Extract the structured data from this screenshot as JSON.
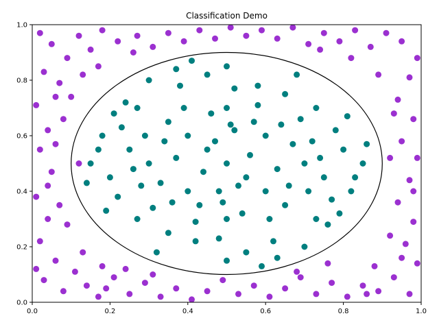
{
  "chart_data": {
    "type": "scatter",
    "title": "Classification Demo",
    "xlabel": "",
    "ylabel": "",
    "xlim": [
      0.0,
      1.0
    ],
    "ylim": [
      0.0,
      1.0
    ],
    "x_ticks": [
      "0.0",
      "0.2",
      "0.4",
      "0.6",
      "0.8",
      "1.0"
    ],
    "y_ticks": [
      "0.0",
      "0.2",
      "0.4",
      "0.6",
      "0.8",
      "1.0"
    ],
    "grid": false,
    "legend": false,
    "boundary": {
      "shape": "circle",
      "center": [
        0.5,
        0.5
      ],
      "radius": 0.4,
      "color": "#000000"
    },
    "series": [
      {
        "color": "#9b30d0",
        "points": [
          [
            0.02,
            0.97
          ],
          [
            0.05,
            0.93
          ],
          [
            0.09,
            0.88
          ],
          [
            0.12,
            0.96
          ],
          [
            0.15,
            0.91
          ],
          [
            0.18,
            0.98
          ],
          [
            0.22,
            0.94
          ],
          [
            0.03,
            0.83
          ],
          [
            0.07,
            0.79
          ],
          [
            0.01,
            0.71
          ],
          [
            0.04,
            0.62
          ],
          [
            0.08,
            0.66
          ],
          [
            0.02,
            0.55
          ],
          [
            0.05,
            0.47
          ],
          [
            0.01,
            0.38
          ],
          [
            0.04,
            0.3
          ],
          [
            0.07,
            0.35
          ],
          [
            0.02,
            0.22
          ],
          [
            0.06,
            0.15
          ],
          [
            0.03,
            0.08
          ],
          [
            0.08,
            0.04
          ],
          [
            0.11,
            0.11
          ],
          [
            0.14,
            0.06
          ],
          [
            0.17,
            0.02
          ],
          [
            0.21,
            0.09
          ],
          [
            0.25,
            0.03
          ],
          [
            0.29,
            0.07
          ],
          [
            0.33,
            0.02
          ],
          [
            0.37,
            0.05
          ],
          [
            0.41,
            0.01
          ],
          [
            0.45,
            0.04
          ],
          [
            0.49,
            0.08
          ],
          [
            0.53,
            0.03
          ],
          [
            0.57,
            0.06
          ],
          [
            0.61,
            0.02
          ],
          [
            0.65,
            0.05
          ],
          [
            0.69,
            0.09
          ],
          [
            0.73,
            0.03
          ],
          [
            0.77,
            0.07
          ],
          [
            0.81,
            0.02
          ],
          [
            0.85,
            0.06
          ],
          [
            0.89,
            0.04
          ],
          [
            0.93,
            0.09
          ],
          [
            0.97,
            0.03
          ],
          [
            0.99,
            0.14
          ],
          [
            0.96,
            0.21
          ],
          [
            0.98,
            0.29
          ],
          [
            0.94,
            0.36
          ],
          [
            0.97,
            0.44
          ],
          [
            0.99,
            0.52
          ],
          [
            0.95,
            0.58
          ],
          [
            0.98,
            0.66
          ],
          [
            0.94,
            0.73
          ],
          [
            0.97,
            0.81
          ],
          [
            0.99,
            0.88
          ],
          [
            0.95,
            0.94
          ],
          [
            0.91,
            0.97
          ],
          [
            0.87,
            0.92
          ],
          [
            0.83,
            0.98
          ],
          [
            0.79,
            0.94
          ],
          [
            0.75,
            0.97
          ],
          [
            0.71,
            0.93
          ],
          [
            0.67,
            0.99
          ],
          [
            0.63,
            0.95
          ],
          [
            0.59,
            0.98
          ],
          [
            0.55,
            0.96
          ],
          [
            0.51,
            0.99
          ],
          [
            0.47,
            0.95
          ],
          [
            0.43,
            0.98
          ],
          [
            0.39,
            0.94
          ],
          [
            0.35,
            0.97
          ],
          [
            0.31,
            0.92
          ],
          [
            0.27,
            0.96
          ],
          [
            0.13,
            0.82
          ],
          [
            0.1,
            0.74
          ],
          [
            0.06,
            0.57
          ],
          [
            0.09,
            0.28
          ],
          [
            0.13,
            0.18
          ],
          [
            0.18,
            0.13
          ],
          [
            0.24,
            0.12
          ],
          [
            0.88,
            0.13
          ],
          [
            0.92,
            0.24
          ],
          [
            0.93,
            0.68
          ],
          [
            0.89,
            0.82
          ],
          [
            0.82,
            0.88
          ],
          [
            0.74,
            0.91
          ],
          [
            0.26,
            0.9
          ],
          [
            0.17,
            0.85
          ],
          [
            0.04,
            0.42
          ],
          [
            0.01,
            0.12
          ],
          [
            0.95,
            0.16
          ],
          [
            0.86,
            0.03
          ],
          [
            0.19,
            0.05
          ],
          [
            0.31,
            0.1
          ],
          [
            0.68,
            0.11
          ],
          [
            0.76,
            0.14
          ],
          [
            0.92,
            0.52
          ],
          [
            0.12,
            0.5
          ],
          [
            0.06,
            0.74
          ],
          [
            0.98,
            0.4
          ]
        ]
      },
      {
        "color": "#007f7f",
        "points": [
          [
            0.5,
            0.5
          ],
          [
            0.45,
            0.55
          ],
          [
            0.55,
            0.45
          ],
          [
            0.4,
            0.4
          ],
          [
            0.6,
            0.6
          ],
          [
            0.35,
            0.65
          ],
          [
            0.65,
            0.35
          ],
          [
            0.3,
            0.5
          ],
          [
            0.7,
            0.5
          ],
          [
            0.5,
            0.3
          ],
          [
            0.5,
            0.7
          ],
          [
            0.25,
            0.55
          ],
          [
            0.75,
            0.45
          ],
          [
            0.42,
            0.22
          ],
          [
            0.58,
            0.78
          ],
          [
            0.2,
            0.45
          ],
          [
            0.8,
            0.55
          ],
          [
            0.38,
            0.78
          ],
          [
            0.62,
            0.22
          ],
          [
            0.27,
            0.3
          ],
          [
            0.73,
            0.7
          ],
          [
            0.27,
            0.7
          ],
          [
            0.73,
            0.3
          ],
          [
            0.45,
            0.82
          ],
          [
            0.55,
            0.18
          ],
          [
            0.18,
            0.6
          ],
          [
            0.82,
            0.4
          ],
          [
            0.33,
            0.43
          ],
          [
            0.67,
            0.57
          ],
          [
            0.48,
            0.4
          ],
          [
            0.52,
            0.62
          ],
          [
            0.4,
            0.6
          ],
          [
            0.6,
            0.4
          ],
          [
            0.22,
            0.38
          ],
          [
            0.78,
            0.62
          ],
          [
            0.35,
            0.25
          ],
          [
            0.65,
            0.75
          ],
          [
            0.15,
            0.5
          ],
          [
            0.85,
            0.5
          ],
          [
            0.5,
            0.85
          ],
          [
            0.5,
            0.15
          ],
          [
            0.3,
            0.8
          ],
          [
            0.7,
            0.2
          ],
          [
            0.32,
            0.18
          ],
          [
            0.68,
            0.82
          ],
          [
            0.24,
            0.72
          ],
          [
            0.76,
            0.28
          ],
          [
            0.43,
            0.35
          ],
          [
            0.57,
            0.65
          ],
          [
            0.37,
            0.52
          ],
          [
            0.63,
            0.48
          ],
          [
            0.28,
            0.42
          ],
          [
            0.72,
            0.58
          ],
          [
            0.46,
            0.68
          ],
          [
            0.54,
            0.32
          ],
          [
            0.19,
            0.33
          ],
          [
            0.81,
            0.67
          ],
          [
            0.41,
            0.87
          ],
          [
            0.59,
            0.13
          ],
          [
            0.14,
            0.43
          ],
          [
            0.86,
            0.57
          ],
          [
            0.36,
            0.36
          ],
          [
            0.64,
            0.64
          ],
          [
            0.44,
            0.47
          ],
          [
            0.56,
            0.53
          ],
          [
            0.23,
            0.63
          ],
          [
            0.77,
            0.37
          ],
          [
            0.39,
            0.7
          ],
          [
            0.61,
            0.3
          ],
          [
            0.29,
            0.6
          ],
          [
            0.71,
            0.4
          ],
          [
            0.52,
            0.77
          ],
          [
            0.48,
            0.23
          ],
          [
            0.17,
            0.55
          ],
          [
            0.83,
            0.45
          ],
          [
            0.34,
            0.58
          ],
          [
            0.66,
            0.42
          ],
          [
            0.47,
            0.58
          ],
          [
            0.53,
            0.42
          ],
          [
            0.26,
            0.48
          ],
          [
            0.74,
            0.52
          ],
          [
            0.42,
            0.29
          ],
          [
            0.58,
            0.71
          ],
          [
            0.21,
            0.68
          ],
          [
            0.79,
            0.32
          ],
          [
            0.37,
            0.84
          ],
          [
            0.63,
            0.16
          ],
          [
            0.31,
            0.34
          ],
          [
            0.69,
            0.66
          ],
          [
            0.49,
            0.36
          ],
          [
            0.51,
            0.64
          ]
        ]
      }
    ]
  }
}
